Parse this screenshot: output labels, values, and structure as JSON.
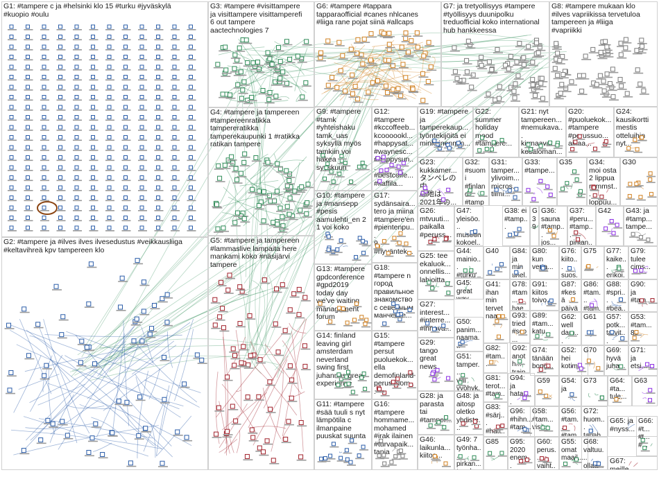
{
  "groups": [
    {
      "id": "G1",
      "label": "G1: #tampere c ja #helsinki klo 15 #turku #jyväskylä\n#kuopio #oulu",
      "color": "#2a5ca8"
    },
    {
      "id": "G2",
      "label": "G2: #tampere ja #ilves ilves ilvesedustus #veikkausliiga\n#keltavihreä kpv tampereen klo",
      "color": "#2a5ca8"
    },
    {
      "id": "G3",
      "label": "G3: #tampere #visittampere\nja visittampere visittamperefi\n6 out tampere\naactechnologies 7",
      "color": "#2e8b57"
    },
    {
      "id": "G4",
      "label": "G4: #tampere ja tampereen\n#tampereenratikka\ntampereratikka\ntamperekaupunki 1 #ratikka\nratikan tampere",
      "color": "#2e8b57"
    },
    {
      "id": "G5",
      "label": "G5: #tampere ja tampereen\n#lammaslive lampaita here\nmankami koko #näsijärvi\ntampere",
      "color": "#a0202a"
    },
    {
      "id": "G6",
      "label": "G6: #tampere #tappara\ntapparaofficial #canes nhlcanes\n#liiga rane pojat siinä #allcaps",
      "color": "#d08020"
    },
    {
      "id": "G7",
      "label": "G7: ja tretyollisyys #tampere\n#työllisyys duunipolku\ntreduofficial koko international\nhub hankkeessa",
      "color": "#7a7a7a"
    },
    {
      "id": "G8",
      "label": "G8: #tampere mukaan klo\n#ilves vapriikissa tervetuloa\ntampereen ja #liiga\n#vapriikki",
      "color": "#7a7a7a"
    },
    {
      "id": "G9",
      "label": "G9: #tampere\n#tamk\n#yhteishaku\ntamk_uas\nsyksyllä myös\ntamkiin voi\nhakea\nsyyskuun",
      "color": "#2e8b57"
    },
    {
      "id": "G10",
      "label": "G10: #tampere\nja #mansepp\n#pesis\naamulehti_en 2\n1 voi koko",
      "color": "#2a5ca8"
    },
    {
      "id": "G11",
      "label": "G11: #tampere\n#sää tuuli s nyt\nlämpötila c\nilmanpaine\npuuskat suunta",
      "color": "#2a5ca8"
    },
    {
      "id": "G12",
      "label": "G12:\n#tampere\n#kccoffeeb...\nkcoooookl...\n#happysat...\n#waynesc...\n#happysun...\n#bestcoffe...\n#kaffila...",
      "color": "#8a2be2"
    },
    {
      "id": "G13",
      "label": "G13: #tampere\ngpdconference\n#gpd2019\ntoday day\nwe've waiting\nmanagement\nforum",
      "color": "#d08020"
    },
    {
      "id": "G14",
      "label": "G14: finland\nleaving girl\namsterdam\nneverland\nswing first\njuhannus great\nexperience",
      "color": "#2e8b57"
    },
    {
      "id": "G15",
      "label": "G15:\n#tampere\npersut\npuoluekok...\nella\ndemofinland\nperussuom...",
      "color": "#a0202a"
    },
    {
      "id": "G16",
      "label": "G16:\n#tampere\nhommame...\nmohamed\n#irak ilainen\n#turvapaik...\ntania",
      "color": "#7a7a7a"
    },
    {
      "id": "G17",
      "label": "G17:\nsydänsaira...\ntero ja miina\n#tampere'en\n#pientenpu...\n9\n#hyväntek...",
      "color": "#d08020"
    },
    {
      "id": "G18",
      "label": "G18:\n#tampere n\nгород\nправильное\nзнакомство\nс северным\nманчесте...",
      "color": "#2a5ca8"
    },
    {
      "id": "G19",
      "label": "G19: #tampere\nja\ntamperekaup...\ntyöntekijöitä ei\nminkkinenmin...",
      "color": "#2a5ca8"
    },
    {
      "id": "G20",
      "label": "G20:\n#puoluekok...\n#tampere\n#perussuo...\naikaa...",
      "color": "#a0202a"
    },
    {
      "id": "G21",
      "label": "G21: nyt\ntampereen...\n#nemukava...\nkirmaavat\nkesäloman...",
      "color": "#2e8b57"
    },
    {
      "id": "G22",
      "label": "G22:\nsummer\nholiday\nmood\n#tampere...",
      "color": "#2e8b57"
    },
    {
      "id": "G23",
      "label": "G23:\nkukkamer...\nタンペレの中\n心地は\n2021年の...",
      "color": "#8a2be2"
    },
    {
      "id": "G24",
      "label": "G24:\nkausikortti\nmestis\notteluihin\nnyt...",
      "color": "#d08020"
    },
    {
      "id": "G25",
      "label": "G25: tee\nekaluok...\nonnellis...\nlahjoitta...",
      "color": "#2e8b57"
    },
    {
      "id": "G26",
      "label": "G26:\nmtvuuti...\npaikalla\n#peruss...",
      "color": "#a0202a"
    },
    {
      "id": "G27",
      "label": "G27:\ninterest...\n#interre...\n#innova...",
      "color": "#2a5ca8"
    },
    {
      "id": "G28",
      "label": "G28: ja\nparasta\ntai\n#tamper...",
      "color": "#2e8b57"
    },
    {
      "id": "G29",
      "label": "G29:\ntango\ngreat\nnews",
      "color": "#8a2be2"
    },
    {
      "id": "G30",
      "label": "G30",
      "color": "#d08020"
    },
    {
      "id": "G31",
      "label": "G31:\ntamper...\nylivoim...\nmicros...\ntiimi...",
      "color": "#2a5ca8"
    },
    {
      "id": "G32",
      "label": "G32:\n#suomi\n#finland\n#tampe...\nhurmek...",
      "color": "#2e8b57"
    },
    {
      "id": "G33",
      "label": "G33:\n#tampe...",
      "color": "#8a2be2"
    },
    {
      "id": "G34",
      "label": "G34:\nmoi osta\n2 lippua\nrammst...\nloppuu...",
      "color": "#a0202a"
    },
    {
      "id": "G35",
      "label": "G35",
      "color": "#2e8b57"
    },
    {
      "id": "G36",
      "label": "G36:\nsauna\n#tamp...\njos...",
      "color": "#d08020"
    },
    {
      "id": "G37",
      "label": "G37:\n#peru...\n#tamp...\npirkan...",
      "color": "#a0202a"
    },
    {
      "id": "G38",
      "label": "G38: ei\n#tamp...",
      "color": "#2a5ca8"
    },
    {
      "id": "G39",
      "label": "G39",
      "color": "#2e8b57"
    },
    {
      "id": "G40",
      "label": "G40",
      "color": "#2a5ca8"
    },
    {
      "id": "G41",
      "label": "G41:\nihan\nmin\ntervet\nnaap...",
      "color": "#d08020"
    },
    {
      "id": "G42",
      "label": "G42",
      "color": "#8a2be2"
    },
    {
      "id": "G43",
      "label": "G43: ja\n#tamp...\ntampe...",
      "color": "#7a7a7a"
    },
    {
      "id": "G44",
      "label": "G44:\nmainio...\n#turku'...\nilmesty...",
      "color": "#2e8b57"
    },
    {
      "id": "G45",
      "label": "G45:\ngreat\nway\nspend...",
      "color": "#2e8b57"
    },
    {
      "id": "G46",
      "label": "G46:\nlaikunla...\nkiitos...",
      "color": "#d08020"
    },
    {
      "id": "G47",
      "label": "G47:\nyleisöo...\nmuseon\nkokoel...",
      "color": "#2a5ca8"
    },
    {
      "id": "G48",
      "label": "G48: ja\naitosp\noletko\nyhdiste...",
      "color": "#a0202a"
    },
    {
      "id": "G49",
      "label": "G49: 7\ntyönha...\npirkan...\ntepalv...",
      "color": "#2e8b57"
    },
    {
      "id": "G50",
      "label": "G50:\npanim...\nnaama...",
      "color": "#2a5ca8"
    },
    {
      "id": "G51",
      "label": "G51:\ntamper...\nvilli\nvyöhyk...",
      "color": "#2e8b57"
    },
    {
      "id": "G52",
      "label": "G52:\nhei\nkotim...",
      "color": "#8a2be2"
    },
    {
      "id": "G53",
      "label": "G53:\n#tam...\n89",
      "color": "#d08020"
    },
    {
      "id": "G54",
      "label": "G54:\nja",
      "color": "#2a5ca8"
    },
    {
      "id": "G55",
      "label": "G55:\nomat\nmaail...",
      "color": "#2e8b57"
    },
    {
      "id": "G56",
      "label": "G56:\n#tam...\n#tam...",
      "color": "#a0202a"
    },
    {
      "id": "G57",
      "label": "G57:\npotk...\ntarvit...",
      "color": "#2a5ca8"
    },
    {
      "id": "G58",
      "label": "G58:\n#tam...\nvisit...",
      "color": "#2e8b57"
    },
    {
      "id": "G59",
      "label": "G59",
      "color": "#d08020"
    },
    {
      "id": "G60",
      "label": "G60:\nperus...\nvaiht...",
      "color": "#a0202a"
    },
    {
      "id": "G61",
      "label": "G61",
      "color": "#2a5ca8"
    },
    {
      "id": "G62",
      "label": "G62:\nwell\ndam...",
      "color": "#2e8b57"
    },
    {
      "id": "G63",
      "label": "G63",
      "color": "#8a2be2"
    },
    {
      "id": "G64",
      "label": "G64:\n#ta...\ntule...",
      "color": "#d08020"
    },
    {
      "id": "G65",
      "label": "G65: ja\n#nyss...",
      "color": "#2a5ca8"
    },
    {
      "id": "G66",
      "label": "G66:\n#t...\n#t...\n#...",
      "color": "#2e8b57"
    },
    {
      "id": "G67",
      "label": "G67:\nmeille...",
      "color": "#a0202a"
    },
    {
      "id": "G68",
      "label": "G68:\nvaltuu...\nollaa...",
      "color": "#2a5ca8"
    },
    {
      "id": "G69",
      "label": "G69:\nhyvä\njuha...",
      "color": "#2e8b57"
    },
    {
      "id": "G70",
      "label": "G70",
      "color": "#d08020"
    },
    {
      "id": "G71",
      "label": "G71:\nja\netsi...",
      "color": "#8a2be2"
    },
    {
      "id": "G72",
      "label": "G72:\nhuom...\ntapah...",
      "color": "#2a5ca8"
    },
    {
      "id": "G73",
      "label": "G73",
      "color": "#2e8b57"
    },
    {
      "id": "G74",
      "label": "G74:\ntänään\nbong...",
      "color": "#a0202a"
    },
    {
      "id": "G75",
      "label": "G75",
      "color": "#d08020"
    },
    {
      "id": "G76",
      "label": "G76:\nkiito...\nsuos...",
      "color": "#2a5ca8"
    },
    {
      "id": "G77",
      "label": "G77:\nkaike...\nerikoi...",
      "color": "#2e8b57"
    },
    {
      "id": "G78",
      "label": "G78:\n#tam...\nhaem...",
      "color": "#a0202a"
    },
    {
      "id": "G79",
      "label": "G79:\ntulee\ncims...",
      "color": "#8a2be2"
    },
    {
      "id": "G80",
      "label": "G80:\nkun\nverta...",
      "color": "#2a5ca8"
    },
    {
      "id": "G81",
      "label": "G81:\nterot...\n#tam...",
      "color": "#2e8b57"
    },
    {
      "id": "G82",
      "label": "G82:\n#tam...",
      "color": "#d08020"
    },
    {
      "id": "G83",
      "label": "G83:\n#särj...\n#hatt...",
      "color": "#a0202a"
    },
    {
      "id": "G84",
      "label": "G84:\nja min\nunel...",
      "color": "#2a5ca8"
    },
    {
      "id": "G85",
      "label": "G85",
      "color": "#2e8b57"
    },
    {
      "id": "G86",
      "label": "G86:\n#tam...\n#tam...",
      "color": "#8a2be2"
    },
    {
      "id": "G87",
      "label": "G87:\n#kesä\npäivä...",
      "color": "#d08020"
    },
    {
      "id": "G88",
      "label": "G88:\n#spri...\n#bea...",
      "color": "#2a5ca8"
    },
    {
      "id": "G89",
      "label": "G89:\n#tam...\nkatu...",
      "color": "#2e8b57"
    },
    {
      "id": "G90",
      "label": "G90:\nja\n#tam...",
      "color": "#a0202a"
    },
    {
      "id": "G91",
      "label": "G91:\nkiitos\ntoivo...",
      "color": "#2a5ca8"
    },
    {
      "id": "G92",
      "label": "G92:\nanoth...\ntrainy...",
      "color": "#2e8b57"
    },
    {
      "id": "G93",
      "label": "G93:\ntried\n#sco...",
      "color": "#d08020"
    },
    {
      "id": "G94",
      "label": "G94:\nja\nhatan...",
      "color": "#8a2be2"
    },
    {
      "id": "G95",
      "label": "G95:\n2020\nenem...",
      "color": "#a0202a"
    },
    {
      "id": "G96",
      "label": "G96:\n#hihn...\n#tam...",
      "color": "#2a5ca8"
    }
  ]
}
